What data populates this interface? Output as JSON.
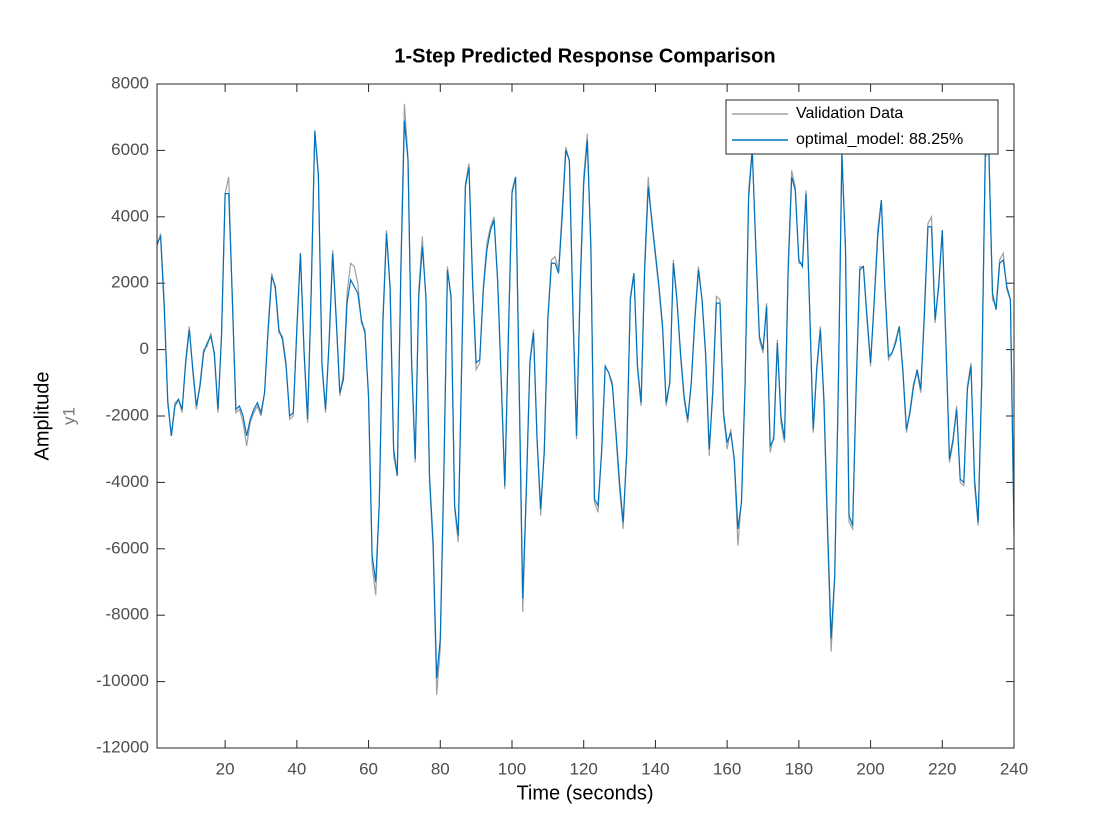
{
  "chart_data": {
    "type": "line",
    "title": "1-Step Predicted Response Comparison",
    "x_label": "Time (seconds)",
    "y_label": "Amplitude",
    "output_name": "y1",
    "xlim": [
      1,
      240
    ],
    "ylim": [
      -12000,
      8000
    ],
    "xticks": [
      20,
      40,
      60,
      80,
      100,
      120,
      140,
      160,
      180,
      200,
      220,
      240
    ],
    "yticks": [
      -12000,
      -10000,
      -8000,
      -6000,
      -4000,
      -2000,
      0,
      2000,
      4000,
      6000,
      8000
    ],
    "grid": false,
    "legend": "northeast",
    "x": [
      1,
      2,
      3,
      4,
      5,
      6,
      7,
      8,
      9,
      10,
      11,
      12,
      13,
      14,
      15,
      16,
      17,
      18,
      19,
      20,
      21,
      22,
      23,
      24,
      25,
      26,
      27,
      28,
      29,
      30,
      31,
      32,
      33,
      34,
      35,
      36,
      37,
      38,
      39,
      40,
      41,
      42,
      43,
      44,
      45,
      46,
      47,
      48,
      49,
      50,
      51,
      52,
      53,
      54,
      55,
      56,
      57,
      58,
      59,
      60,
      61,
      62,
      63,
      64,
      65,
      66,
      67,
      68,
      69,
      70,
      71,
      72,
      73,
      74,
      75,
      76,
      77,
      78,
      79,
      80,
      81,
      82,
      83,
      84,
      85,
      86,
      87,
      88,
      89,
      90,
      91,
      92,
      93,
      94,
      95,
      96,
      97,
      98,
      99,
      100,
      101,
      102,
      103,
      104,
      105,
      106,
      107,
      108,
      109,
      110,
      111,
      112,
      113,
      114,
      115,
      116,
      117,
      118,
      119,
      120,
      121,
      122,
      123,
      124,
      125,
      126,
      127,
      128,
      129,
      130,
      131,
      132,
      133,
      134,
      135,
      136,
      137,
      138,
      139,
      140,
      141,
      142,
      143,
      144,
      145,
      146,
      147,
      148,
      149,
      150,
      151,
      152,
      153,
      154,
      155,
      156,
      157,
      158,
      159,
      160,
      161,
      162,
      163,
      164,
      165,
      166,
      167,
      168,
      169,
      170,
      171,
      172,
      173,
      174,
      175,
      176,
      177,
      178,
      179,
      180,
      181,
      182,
      183,
      184,
      185,
      186,
      187,
      188,
      189,
      190,
      191,
      192,
      193,
      194,
      195,
      196,
      197,
      198,
      199,
      200,
      201,
      202,
      203,
      204,
      205,
      206,
      207,
      208,
      209,
      210,
      211,
      212,
      213,
      214,
      215,
      216,
      217,
      218,
      219,
      220,
      221,
      222,
      223,
      224,
      225,
      226,
      227,
      228,
      229,
      230,
      231,
      232,
      233,
      234,
      235,
      236,
      237,
      238,
      239,
      240
    ],
    "series": [
      {
        "name": "Validation Data",
        "color": "#a0a0a0",
        "values": [
          3100,
          3500,
          1500,
          -1500,
          -2600,
          -1600,
          -1500,
          -1900,
          -300,
          700,
          -700,
          -1800,
          -1000,
          0,
          100,
          500,
          -200,
          -1900,
          500,
          4700,
          5200,
          1500,
          -1900,
          -1800,
          -2200,
          -2900,
          -2200,
          -1900,
          -1700,
          -2000,
          -1300,
          700,
          2300,
          1800,
          500,
          400,
          -400,
          -2100,
          -2000,
          700,
          2900,
          -100,
          -2200,
          1800,
          6500,
          5200,
          -500,
          -1900,
          300,
          3000,
          800,
          -1400,
          -700,
          1700,
          2600,
          2500,
          2000,
          800,
          600,
          -1500,
          -6500,
          -7400,
          -4500,
          1000,
          3600,
          1800,
          -3200,
          -3800,
          2500,
          7400,
          5800,
          -500,
          -3400,
          1800,
          3400,
          1500,
          -4000,
          -6000,
          -10400,
          -9000,
          -3800,
          2500,
          1500,
          -4800,
          -5800,
          -200,
          5000,
          5600,
          2000,
          -600,
          -400,
          1900,
          3200,
          3700,
          4000,
          2000,
          -1000,
          -4200,
          500,
          4800,
          5200,
          -1300,
          -7900,
          -4300,
          -300,
          600,
          -2800,
          -5000,
          -3000,
          1000,
          2700,
          2800,
          2400,
          4200,
          6100,
          5700,
          1000,
          -2700,
          2000,
          5200,
          6500,
          3000,
          -4600,
          -4900,
          -3000,
          -500,
          -700,
          -1000,
          -2600,
          -4200,
          -5400,
          -3000,
          1600,
          2300,
          -600,
          -1700,
          2600,
          5200,
          3800,
          2800,
          1800,
          600,
          -1700,
          -1000,
          2700,
          1500,
          -200,
          -1500,
          -2200,
          -1000,
          1000,
          2500,
          1500,
          -200,
          -3200,
          -1200,
          1600,
          1500,
          -2000,
          -3000,
          -2400,
          -3400,
          -5900,
          -4500,
          -1000,
          4800,
          6100,
          3000,
          300,
          -100,
          1400,
          -3100,
          -2600,
          300,
          -2200,
          -2800,
          2500,
          5400,
          4900,
          2600,
          2600,
          4800,
          1200,
          -2500,
          -500,
          700,
          -1700,
          -5600,
          -9100,
          -6900,
          -1100,
          6000,
          3000,
          -5200,
          -5400,
          -1000,
          2500,
          2500,
          900,
          -500,
          1500,
          3600,
          4500,
          1800,
          -300,
          -100,
          300,
          700,
          -700,
          -2500,
          -1800,
          -1000,
          -700,
          -1300,
          1200,
          3800,
          4000,
          800,
          2000,
          3600,
          200,
          -3400,
          -2800,
          -1700,
          -4000,
          -4100,
          -1100,
          -400,
          -4100,
          -5300,
          -1000,
          5800,
          6000,
          1500,
          1300,
          2700,
          2900,
          1800,
          1500,
          -5600
        ]
      },
      {
        "name": "optimal_model: 88.25%",
        "color": "#0072bd",
        "values": [
          3200,
          3400,
          1300,
          -1600,
          -2600,
          -1700,
          -1500,
          -1800,
          -400,
          600,
          -600,
          -1700,
          -1100,
          -100,
          200,
          400,
          -100,
          -1800,
          400,
          4700,
          4700,
          1600,
          -1800,
          -1700,
          -2000,
          -2600,
          -2100,
          -1800,
          -1600,
          -1900,
          -1300,
          600,
          2200,
          1900,
          600,
          300,
          -500,
          -2000,
          -1900,
          600,
          2900,
          0,
          -2100,
          1700,
          6600,
          5300,
          -400,
          -1800,
          200,
          2900,
          900,
          -1300,
          -900,
          1400,
          2100,
          1900,
          1700,
          900,
          500,
          -1400,
          -6200,
          -7000,
          -4600,
          800,
          3500,
          1900,
          -3000,
          -3800,
          2300,
          6900,
          5700,
          -300,
          -3300,
          1600,
          3100,
          1600,
          -3800,
          -5800,
          -9900,
          -8700,
          -3700,
          2400,
          1600,
          -4700,
          -5600,
          -300,
          4900,
          5500,
          2100,
          -400,
          -300,
          1800,
          3000,
          3600,
          3900,
          2100,
          -900,
          -4100,
          400,
          4700,
          5200,
          -1000,
          -7500,
          -4200,
          -400,
          500,
          -2700,
          -4800,
          -3100,
          900,
          2600,
          2600,
          2300,
          4000,
          6000,
          5700,
          1200,
          -2600,
          1800,
          5000,
          6300,
          3100,
          -4500,
          -4700,
          -3100,
          -500,
          -700,
          -1100,
          -2500,
          -4000,
          -5200,
          -3100,
          1500,
          2300,
          -500,
          -1600,
          2400,
          4900,
          3900,
          2900,
          1900,
          700,
          -1600,
          -1000,
          2600,
          1500,
          -100,
          -1400,
          -2100,
          -1000,
          900,
          2400,
          1500,
          -100,
          -3000,
          -1300,
          1400,
          1400,
          -1900,
          -2800,
          -2500,
          -3300,
          -5400,
          -4600,
          -1100,
          4600,
          6000,
          3100,
          400,
          0,
          1300,
          -2900,
          -2700,
          200,
          -2000,
          -2700,
          2300,
          5200,
          4800,
          2700,
          2500,
          4700,
          1300,
          -2400,
          -600,
          600,
          -1500,
          -5300,
          -8700,
          -6800,
          -1200,
          5900,
          3100,
          -5000,
          -5300,
          -1100,
          2400,
          2500,
          1000,
          -400,
          1400,
          3400,
          4500,
          1900,
          -200,
          -100,
          200,
          700,
          -600,
          -2400,
          -1900,
          -1100,
          -600,
          -1200,
          1000,
          3700,
          3700,
          900,
          1900,
          3600,
          300,
          -3300,
          -2700,
          -1800,
          -3900,
          -4000,
          -1200,
          -500,
          -3900,
          -5200,
          -900,
          6000,
          5900,
          1700,
          1200,
          2600,
          2700,
          1900,
          1500,
          -5400
        ]
      }
    ]
  }
}
